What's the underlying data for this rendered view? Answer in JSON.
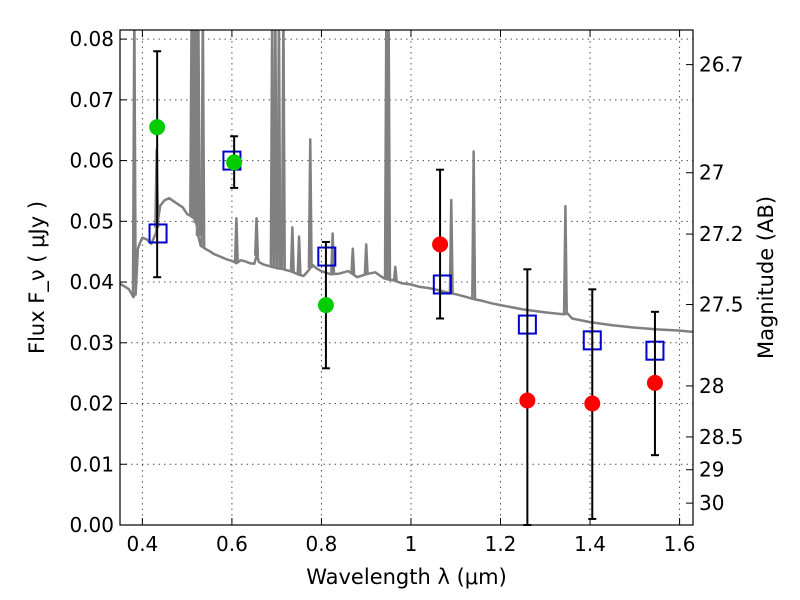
{
  "chart_data": {
    "type": "scatter",
    "title": "",
    "xlabel": "Wavelength  λ (μm)",
    "ylabel": "Flux  F_ν  ( μJy )",
    "ylabel_right": "Magnitude (AB)",
    "xlim": [
      0.35,
      1.63
    ],
    "ylim": [
      0.0,
      0.0815
    ],
    "grid": true,
    "x_ticks": [
      0.4,
      0.6,
      0.8,
      1.0,
      1.2,
      1.4,
      1.6
    ],
    "x_tick_labels": [
      "0.4",
      "0.6",
      "0.8",
      "1",
      "1.2",
      "1.4",
      "1.6"
    ],
    "y_ticks": [
      0.0,
      0.01,
      0.02,
      0.03,
      0.04,
      0.05,
      0.06,
      0.07,
      0.08
    ],
    "y_tick_labels": [
      "0.00",
      "0.01",
      "0.02",
      "0.03",
      "0.04",
      "0.05",
      "0.06",
      "0.07",
      "0.08"
    ],
    "right_axis": {
      "label": "Magnitude (AB)",
      "tick_labels": [
        "26.7",
        "27",
        "27.2",
        "27.5",
        "28",
        "28.5",
        "29",
        "30"
      ],
      "flux_positions": [
        0.0758,
        0.058,
        0.0479,
        0.0363,
        0.0229,
        0.0145,
        0.0091,
        0.0036
      ]
    },
    "series": [
      {
        "kind": "line",
        "color": "#808080",
        "x": [
          0.35,
          0.36,
          0.37,
          0.38,
          0.385,
          0.39,
          0.395,
          0.4,
          0.41,
          0.42,
          0.43,
          0.44,
          0.45,
          0.46,
          0.47,
          0.48,
          0.49,
          0.5,
          0.51,
          0.515,
          0.518,
          0.522,
          0.525,
          0.53,
          0.54,
          0.55,
          0.56,
          0.57,
          0.58,
          0.59,
          0.6,
          0.61,
          0.62,
          0.63,
          0.64,
          0.65,
          0.656,
          0.66,
          0.67,
          0.68,
          0.69,
          0.7,
          0.71,
          0.72,
          0.73,
          0.74,
          0.75,
          0.76,
          0.77,
          0.78,
          0.79,
          0.8,
          0.82,
          0.84,
          0.86,
          0.88,
          0.9,
          0.92,
          0.94,
          0.95,
          0.96,
          0.98,
          1.0,
          1.02,
          1.04,
          1.06,
          1.08,
          1.1,
          1.12,
          1.14,
          1.16,
          1.18,
          1.2,
          1.25,
          1.3,
          1.34,
          1.35,
          1.36,
          1.4,
          1.45,
          1.5,
          1.55,
          1.6,
          1.63
        ],
        "values": [
          0.0397,
          0.0393,
          0.0388,
          0.0375,
          0.0382,
          0.0455,
          0.0465,
          0.0473,
          0.047,
          0.0463,
          0.048,
          0.0526,
          0.0535,
          0.0538,
          0.0533,
          0.0528,
          0.0523,
          0.0512,
          0.0508,
          0.0505,
          0.0502,
          0.0492,
          0.0476,
          0.046,
          0.0455,
          0.0451,
          0.0446,
          0.0443,
          0.044,
          0.0437,
          0.0435,
          0.0431,
          0.0436,
          0.0434,
          0.0431,
          0.043,
          0.0446,
          0.0433,
          0.0429,
          0.0427,
          0.0425,
          0.0423,
          0.0422,
          0.042,
          0.0418,
          0.0415,
          0.0412,
          0.041,
          0.0418,
          0.0428,
          0.0422,
          0.0418,
          0.0413,
          0.0414,
          0.0418,
          0.0408,
          0.0413,
          0.0416,
          0.0406,
          0.0404,
          0.0403,
          0.0398,
          0.0396,
          0.0392,
          0.039,
          0.0387,
          0.0383,
          0.038,
          0.0376,
          0.0372,
          0.0369,
          0.0365,
          0.0362,
          0.0355,
          0.035,
          0.0347,
          0.0348,
          0.034,
          0.0334,
          0.0329,
          0.0325,
          0.0322,
          0.032,
          0.0318
        ]
      },
      {
        "kind": "line-spikes",
        "color": "#808080",
        "x": [
          0.382,
          0.432,
          0.51,
          0.515,
          0.52,
          0.525,
          0.535,
          0.61,
          0.655,
          0.69,
          0.697,
          0.705,
          0.715,
          0.735,
          0.75,
          0.775,
          0.825,
          0.87,
          0.9,
          0.945,
          0.95,
          0.965,
          1.09,
          1.14,
          1.345
        ],
        "values": [
          0.085,
          0.0618,
          0.085,
          0.085,
          0.085,
          0.085,
          0.085,
          0.0505,
          0.0505,
          0.085,
          0.085,
          0.085,
          0.085,
          0.049,
          0.0475,
          0.0635,
          0.048,
          0.0455,
          0.0462,
          0.085,
          0.085,
          0.0425,
          0.0535,
          0.0615,
          0.0525
        ]
      },
      {
        "kind": "model-squares",
        "color": "#0000cc",
        "x": [
          0.435,
          0.6,
          0.812,
          1.07,
          1.26,
          1.405,
          1.545
        ],
        "values": [
          0.048,
          0.06,
          0.0442,
          0.0396,
          0.033,
          0.0304,
          0.0287
        ]
      },
      {
        "kind": "detections",
        "color": "#00cc00",
        "x": [
          0.433,
          0.605,
          0.81
        ],
        "values": [
          0.0655,
          0.0597,
          0.0362
        ],
        "err_low": [
          0.0408,
          0.0555,
          0.0258
        ],
        "err_high": [
          0.078,
          0.064,
          0.0466
        ]
      },
      {
        "kind": "detections",
        "color": "#ff0000",
        "x": [
          1.065,
          1.26,
          1.405,
          1.545
        ],
        "values": [
          0.0462,
          0.0205,
          0.02,
          0.0234
        ],
        "err_low": [
          0.034,
          0.0,
          0.001,
          0.0115
        ],
        "err_high": [
          0.0585,
          0.0421,
          0.0388,
          0.0351
        ]
      }
    ]
  }
}
